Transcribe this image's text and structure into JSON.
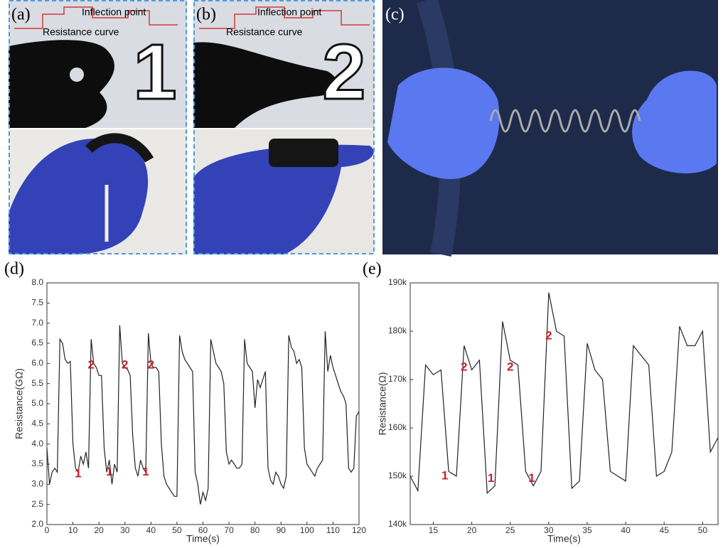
{
  "panels": [
    {
      "label": "(a)",
      "annotations": [
        "Inflection point",
        "Resistance curve"
      ],
      "digit": "1"
    },
    {
      "label": "(b)",
      "annotations": [
        "Inflection point",
        "Resistance curve"
      ],
      "digit": "2"
    },
    {
      "label": "(c)"
    }
  ],
  "chart_data": [
    {
      "type": "line",
      "panel_label": "(d)",
      "x_label": "Time(s)",
      "y_label": "Resistance(GΩ)",
      "xlim": [
        0,
        120
      ],
      "ylim": [
        2,
        8
      ],
      "xticks": [
        0,
        10,
        20,
        30,
        40,
        50,
        60,
        70,
        80,
        90,
        100,
        110,
        120
      ],
      "yticks": [
        {
          "value": 2,
          "label": "2.0"
        },
        2.5,
        {
          "value": 3,
          "label": "3.0"
        },
        3.5,
        {
          "value": 4,
          "label": "4.0"
        },
        4.5,
        {
          "value": 5,
          "label": "5.0"
        },
        5.5,
        {
          "value": 6,
          "label": "6.0"
        },
        6.5,
        {
          "value": 7,
          "label": "7.0"
        },
        7.5,
        {
          "value": 8,
          "label": "8.0"
        }
      ],
      "x": [
        0,
        1,
        2,
        3,
        4,
        5,
        6,
        7,
        8,
        9,
        10,
        11,
        12,
        13,
        14,
        15,
        16,
        17,
        18,
        19,
        20,
        21,
        22,
        23,
        24,
        25,
        26,
        27,
        28,
        29,
        30,
        31,
        32,
        33,
        34,
        35,
        36,
        37,
        38,
        39,
        40,
        41,
        42,
        43,
        44,
        45,
        46,
        47,
        48,
        49,
        50,
        51,
        52,
        53,
        54,
        55,
        56,
        57,
        58,
        59,
        60,
        61,
        62,
        63,
        64,
        65,
        66,
        67,
        68,
        69,
        70,
        71,
        72,
        73,
        74,
        75,
        76,
        77,
        78,
        79,
        80,
        81,
        82,
        83,
        84,
        85,
        86,
        87,
        88,
        89,
        90,
        91,
        92,
        93,
        94,
        95,
        96,
        97,
        98,
        99,
        100,
        101,
        102,
        103,
        104,
        105,
        106,
        107,
        108,
        109,
        110,
        111,
        112,
        113,
        114,
        115,
        116,
        117,
        118,
        119,
        120
      ],
      "series": [
        {
          "color": "#222222",
          "values": [
            3.9,
            3.0,
            3.3,
            3.4,
            3.3,
            6.6,
            6.5,
            6.1,
            6.0,
            6.05,
            4.0,
            3.4,
            3.3,
            3.7,
            3.5,
            3.8,
            3.4,
            6.6,
            6.0,
            5.9,
            5.7,
            5.7,
            3.9,
            3.3,
            3.6,
            3.0,
            3.5,
            3.3,
            6.95,
            6.0,
            5.9,
            5.85,
            5.7,
            4.2,
            3.4,
            3.2,
            3.6,
            3.4,
            3.3,
            6.75,
            6.0,
            5.9,
            5.9,
            5.8,
            4.0,
            3.2,
            3.0,
            2.9,
            2.8,
            2.7,
            2.7,
            6.7,
            6.3,
            6.1,
            6.0,
            5.9,
            5.8,
            3.3,
            3.0,
            2.5,
            2.8,
            2.6,
            2.9,
            6.6,
            6.3,
            6.0,
            5.9,
            5.8,
            5.5,
            3.8,
            3.5,
            3.6,
            3.5,
            3.4,
            3.4,
            3.5,
            6.6,
            6.0,
            5.9,
            5.8,
            4.9,
            5.6,
            5.4,
            5.6,
            5.8,
            3.4,
            3.1,
            3.0,
            3.3,
            3.2,
            3.0,
            2.9,
            3.2,
            6.7,
            6.4,
            6.3,
            6.0,
            6.1,
            5.9,
            3.9,
            3.5,
            3.4,
            3.3,
            3.2,
            3.4,
            3.5,
            3.6,
            6.8,
            5.8,
            6.2,
            5.9,
            5.7,
            5.5,
            5.3,
            5.2,
            5.0,
            3.4,
            3.3,
            3.4,
            4.7,
            4.8
          ]
        }
      ],
      "annotations": [
        {
          "text": "2",
          "x": 17,
          "y": 5.95
        },
        {
          "text": "2",
          "x": 30,
          "y": 5.95
        },
        {
          "text": "2",
          "x": 40,
          "y": 5.95
        },
        {
          "text": "1",
          "x": 12,
          "y": 3.25
        },
        {
          "text": "1",
          "x": 24,
          "y": 3.3
        },
        {
          "text": "1",
          "x": 38,
          "y": 3.3
        }
      ],
      "annotation_color": "#c8202a"
    },
    {
      "type": "line",
      "panel_label": "(e)",
      "x_label": "Time(s)",
      "y_label": "Resistance(Ω)",
      "xlim": [
        12,
        52
      ],
      "ylim": [
        140000,
        190000
      ],
      "xticks": [
        15,
        20,
        25,
        30,
        35,
        40,
        45,
        50
      ],
      "yticks": [
        {
          "value": 140000,
          "label": "140k"
        },
        {
          "value": 150000,
          "label": "150k"
        },
        {
          "value": 160000,
          "label": "160k"
        },
        {
          "value": 170000,
          "label": "170k"
        },
        {
          "value": 180000,
          "label": "180k"
        },
        {
          "value": 190000,
          "label": "190k"
        }
      ],
      "x": [
        12,
        13,
        14,
        15,
        16,
        17,
        18,
        19,
        20,
        21,
        22,
        23,
        24,
        25,
        26,
        27,
        28,
        29,
        30,
        31,
        32,
        33,
        34,
        35,
        36,
        37,
        38,
        39,
        40,
        41,
        42,
        43,
        44,
        45,
        46,
        47,
        48,
        49,
        50,
        51,
        52
      ],
      "series": [
        {
          "color": "#222222",
          "values": [
            150000,
            147000,
            173000,
            171000,
            172000,
            151000,
            150000,
            177000,
            172000,
            174000,
            146500,
            148000,
            182000,
            174000,
            173000,
            151000,
            148000,
            151000,
            188000,
            180000,
            179000,
            147500,
            149000,
            177500,
            172000,
            170000,
            151000,
            150000,
            149000,
            177000,
            175000,
            173000,
            150000,
            151000,
            155000,
            181000,
            177000,
            177000,
            180000,
            155000,
            158000
          ]
        }
      ],
      "annotations": [
        {
          "text": "1",
          "x": 16.5,
          "y": 150000
        },
        {
          "text": "1",
          "x": 22.5,
          "y": 149500
        },
        {
          "text": "1",
          "x": 27.8,
          "y": 149500
        },
        {
          "text": "2",
          "x": 19,
          "y": 172500
        },
        {
          "text": "2",
          "x": 25,
          "y": 172500
        },
        {
          "text": "2",
          "x": 30,
          "y": 179000
        }
      ],
      "annotation_color": "#c8202a"
    }
  ]
}
